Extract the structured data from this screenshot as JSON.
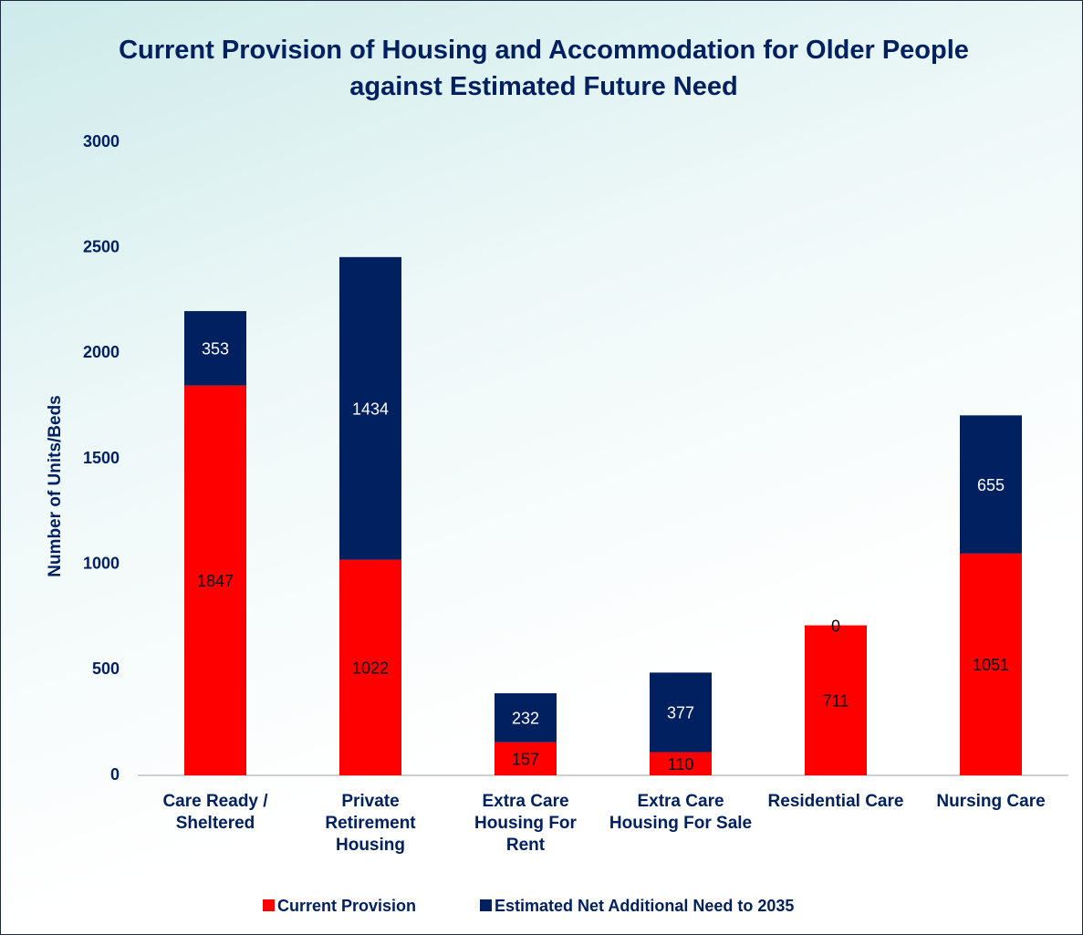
{
  "chart_data": {
    "type": "stacked_bar",
    "title": "Current Provision of Housing and Accommodation for Older People against Estimated Future Need",
    "y_label": "Number of Units/Beds",
    "categories": [
      "Care Ready / Sheltered",
      "Private Retirement Housing",
      "Extra Care Housing For Rent",
      "Extra Care Housing For Sale",
      "Residential Care",
      "Nursing Care"
    ],
    "series": [
      {
        "name": "Current Provision",
        "color": "#ff0000",
        "values": [
          1847,
          1022,
          157,
          110,
          711,
          1051
        ]
      },
      {
        "name": "Estimated Net Additional Need to 2035",
        "color": "#002060",
        "values": [
          353,
          1434,
          232,
          377,
          0,
          655
        ]
      }
    ],
    "ylim": [
      0,
      3000
    ],
    "yticks": [
      0,
      500,
      1000,
      1500,
      2000,
      2500,
      3000
    ],
    "grid": false,
    "legend": "bottom"
  }
}
